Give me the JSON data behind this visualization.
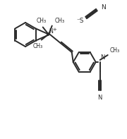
{
  "bg_color": "#ffffff",
  "line_color": "#2a2a2a",
  "line_width": 1.4,
  "figsize": [
    1.8,
    1.97
  ],
  "dpi": 100,
  "xlim": [
    0,
    180
  ],
  "ylim": [
    0,
    197
  ]
}
